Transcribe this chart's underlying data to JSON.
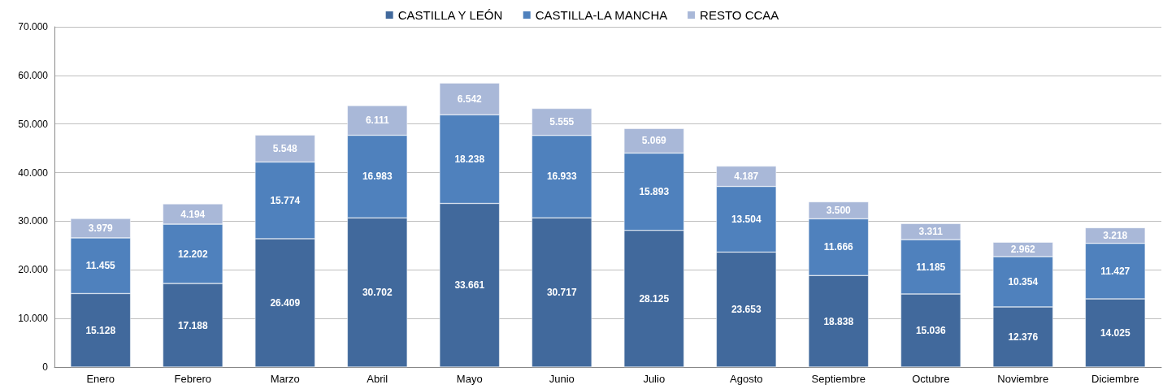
{
  "chart_data": {
    "type": "bar",
    "stacked": true,
    "legend": "top",
    "grid": "y",
    "categories": [
      "Enero",
      "Febrero",
      "Marzo",
      "Abril",
      "Mayo",
      "Junio",
      "Julio",
      "Agosto",
      "Septiembre",
      "Octubre",
      "Noviembre",
      "Diciembre"
    ],
    "ylim": [
      0,
      70000
    ],
    "yticks": [
      0,
      {
        "value": 10000,
        "label": "10.000"
      },
      {
        "value": 20000,
        "label": "20.000"
      },
      {
        "value": 30000,
        "label": "30.000"
      },
      {
        "value": 40000,
        "label": "40.000"
      },
      {
        "value": 50000,
        "label": "50.000"
      },
      {
        "value": 60000,
        "label": "60.000"
      },
      {
        "value": 70000,
        "label": "70.000"
      }
    ],
    "series": [
      {
        "name": "CASTILLA Y LEÓN",
        "color": "#41699c",
        "values": [
          15128,
          17188,
          26409,
          30702,
          33661,
          30717,
          28125,
          23653,
          18838,
          15036,
          12376,
          14025
        ],
        "value_labels": [
          "15.128",
          "17.188",
          "26.409",
          "30.702",
          "33.661",
          "30.717",
          "28.125",
          "23.653",
          "18.838",
          "15.036",
          "12.376",
          "14.025"
        ]
      },
      {
        "name": "CASTILLA-LA MANCHA",
        "color": "#4f81bd",
        "values": [
          11455,
          12202,
          15774,
          16983,
          18238,
          16933,
          15893,
          13504,
          11666,
          11185,
          10354,
          11427
        ],
        "value_labels": [
          "11.455",
          "12.202",
          "15.774",
          "16.983",
          "18.238",
          "16.933",
          "15.893",
          "13.504",
          "11.666",
          "11.185",
          "10.354",
          "11.427"
        ]
      },
      {
        "name": "RESTO CCAA",
        "color": "#a9b8d8",
        "values": [
          3979,
          4194,
          5548,
          6111,
          6542,
          5555,
          5069,
          4187,
          3500,
          3311,
          2962,
          3218
        ],
        "value_labels": [
          "3.979",
          "4.194",
          "5.548",
          "6.111",
          "6.542",
          "5.555",
          "5.069",
          "4.187",
          "3.500",
          "3.311",
          "2.962",
          "3.218"
        ]
      }
    ]
  }
}
